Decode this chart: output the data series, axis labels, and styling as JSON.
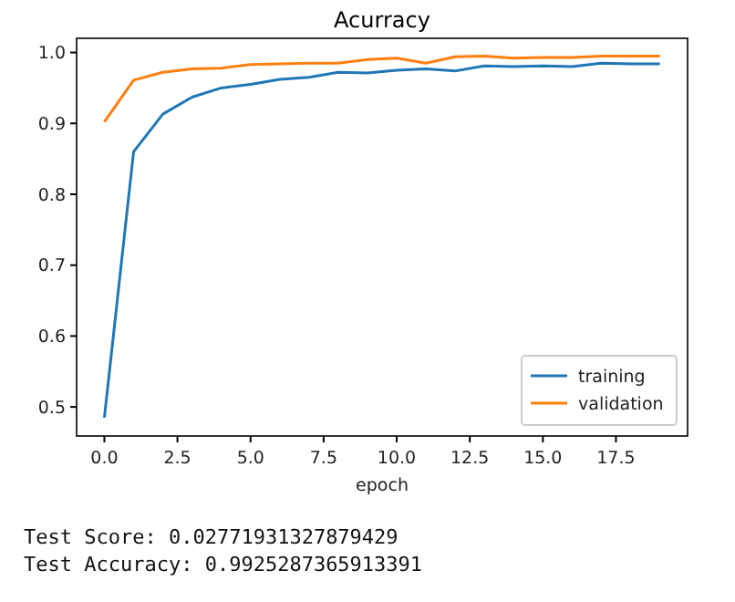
{
  "chart_data": {
    "type": "line",
    "title": "Acurracy",
    "xlabel": "epoch",
    "x": [
      0,
      1,
      2,
      3,
      4,
      5,
      6,
      7,
      8,
      9,
      10,
      11,
      12,
      13,
      14,
      15,
      16,
      17,
      18,
      19
    ],
    "series": [
      {
        "name": "training",
        "color": "#1f77b4",
        "values": [
          0.485,
          0.86,
          0.913,
          0.937,
          0.95,
          0.955,
          0.962,
          0.965,
          0.972,
          0.971,
          0.975,
          0.977,
          0.974,
          0.981,
          0.98,
          0.981,
          0.98,
          0.985,
          0.984,
          0.984
        ]
      },
      {
        "name": "validation",
        "color": "#ff7f0e",
        "values": [
          0.902,
          0.961,
          0.972,
          0.977,
          0.978,
          0.983,
          0.984,
          0.985,
          0.985,
          0.99,
          0.992,
          0.985,
          0.994,
          0.995,
          0.992,
          0.993,
          0.993,
          0.995,
          0.995,
          0.995
        ]
      }
    ],
    "xlim": [
      -0.95,
      19.95
    ],
    "xticks": [
      {
        "value": 0,
        "label": "0.0"
      },
      {
        "value": 2.5,
        "label": "2.5"
      },
      {
        "value": 5,
        "label": "5.0"
      },
      {
        "value": 7.5,
        "label": "7.5"
      },
      {
        "value": 10,
        "label": "10.0"
      },
      {
        "value": 12.5,
        "label": "12.5"
      },
      {
        "value": 15,
        "label": "15.0"
      },
      {
        "value": 17.5,
        "label": "17.5"
      }
    ],
    "ylim": [
      0.459,
      1.02
    ],
    "yticks": [
      {
        "value": 0.5,
        "label": "0.5"
      },
      {
        "value": 0.6,
        "label": "0.6"
      },
      {
        "value": 0.7,
        "label": "0.7"
      },
      {
        "value": 0.8,
        "label": "0.8"
      },
      {
        "value": 0.9,
        "label": "0.9"
      },
      {
        "value": 1.0,
        "label": "1.0"
      }
    ],
    "legend": "bottom right",
    "grid": false,
    "annotations": [
      "Test Score: 0.02771931327879429",
      "Test Accuracy: 0.9925287365913391"
    ]
  }
}
